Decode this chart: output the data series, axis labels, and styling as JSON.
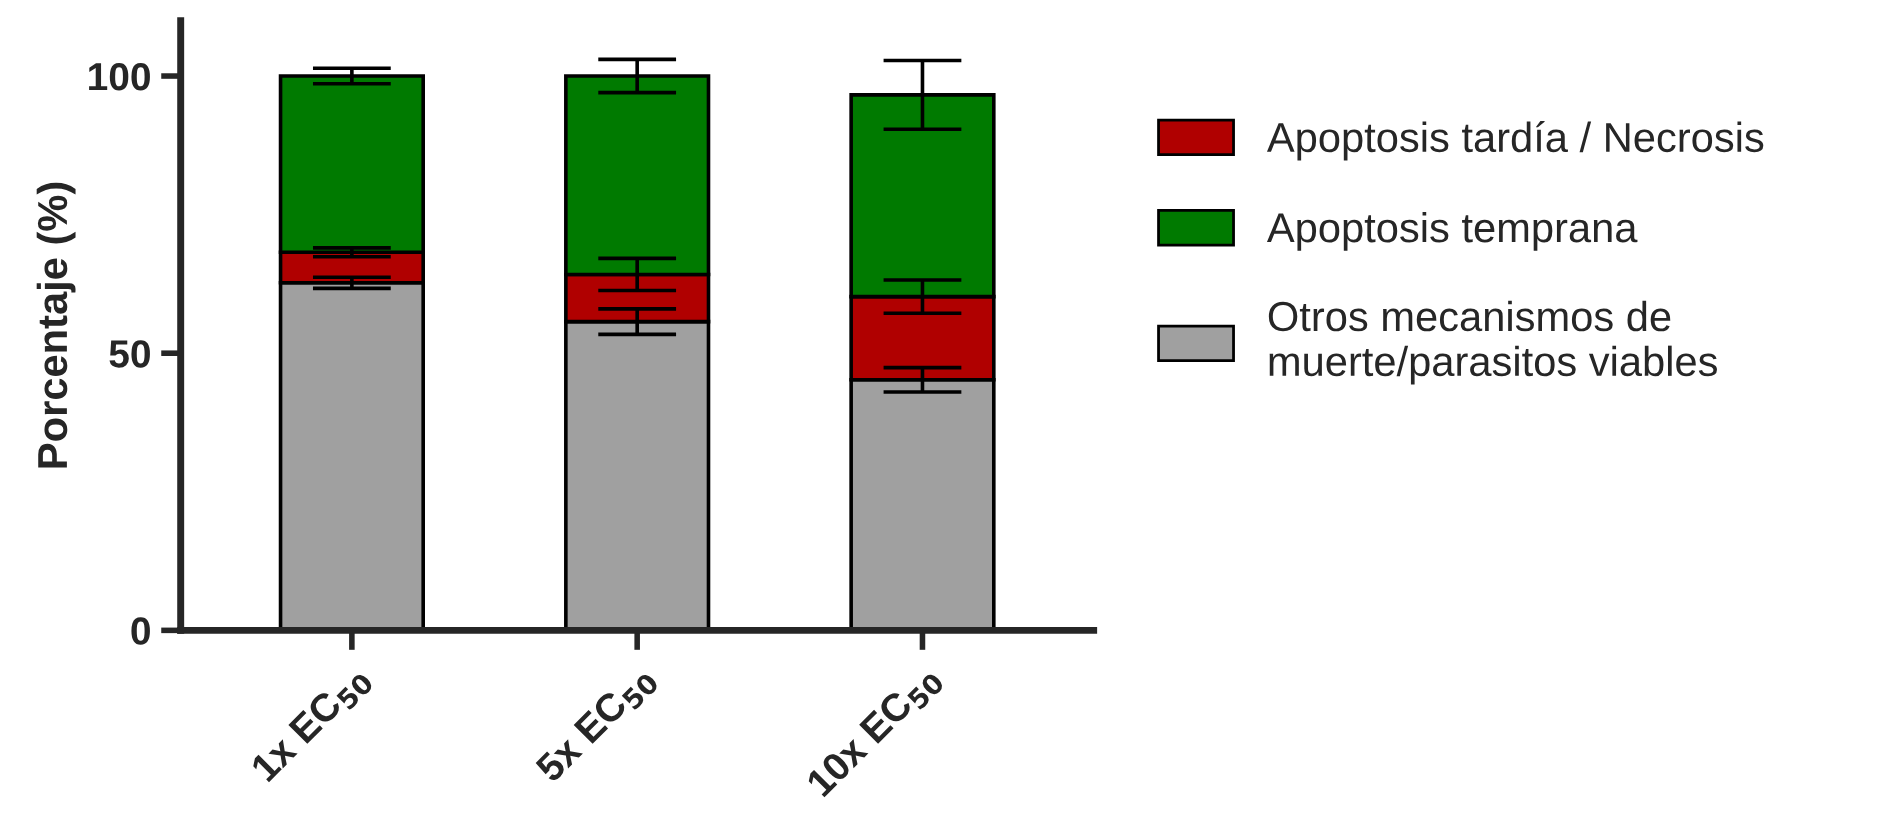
{
  "chart_data": {
    "type": "bar",
    "stacked": true,
    "ylabel": "Porcentaje (%)",
    "categories": [
      "1x EC$_{50}$",
      "5x EC$_{50}$",
      "10x EC$_{50}$"
    ],
    "series": [
      {
        "name": "Otros mecanismos de\nmuerte/parasitos viables",
        "color": "#a0a0a0",
        "values": [
          62.7,
          55.7,
          45.2
        ],
        "errors": [
          1.0,
          2.3,
          2.2
        ]
      },
      {
        "name": "Apoptosis tardía / Necrosis",
        "color": "#b00000",
        "values": [
          5.5,
          8.5,
          15.0
        ],
        "errors": [
          0.8,
          2.9,
          3.0
        ]
      },
      {
        "name": "Apoptosis temprana",
        "color": "#007a00",
        "values": [
          31.8,
          35.8,
          36.4
        ],
        "errors": [
          1.4,
          3.0,
          6.2
        ]
      }
    ],
    "ylim": [
      0,
      110
    ],
    "yticks": [
      0,
      50,
      100
    ],
    "grid": false,
    "legend": "right"
  }
}
